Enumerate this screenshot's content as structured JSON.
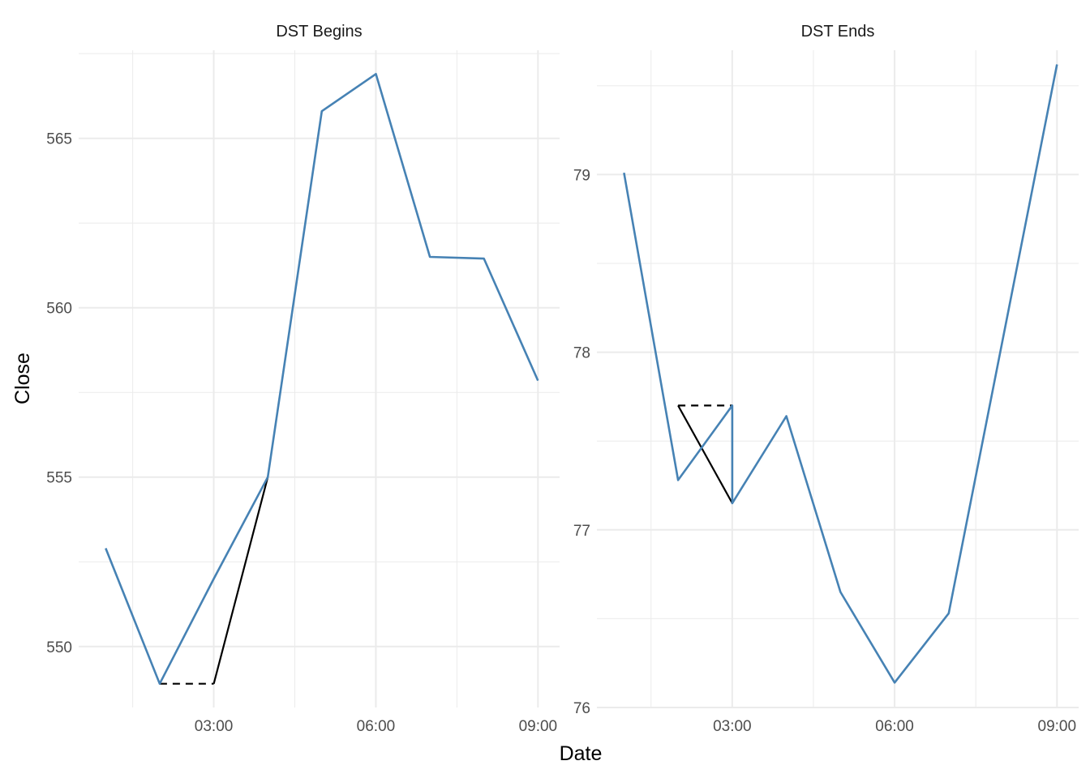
{
  "chart_data": {
    "type": "line",
    "xlabel": "Date",
    "ylabel": "Close",
    "grid": true,
    "colors": {
      "main": "#4682b4",
      "aux": "#000000"
    },
    "panels": [
      {
        "title": "DST Begins",
        "x_ticks": [
          "03:00",
          "06:00",
          "09:00"
        ],
        "x_tick_hours": [
          3,
          6,
          9
        ],
        "xlim": [
          0.5,
          9.4
        ],
        "y_ticks": [
          550,
          555,
          560,
          565
        ],
        "ylim": [
          548.2,
          567.6
        ],
        "series": [
          {
            "role": "main",
            "style": "solid",
            "points": [
              [
                1,
                552.9
              ],
              [
                2,
                548.9
              ],
              [
                3,
                552.0
              ],
              [
                4,
                555.0
              ],
              [
                5,
                565.8
              ],
              [
                6,
                566.9
              ],
              [
                7,
                561.5
              ],
              [
                8,
                561.45
              ],
              [
                9,
                557.85
              ]
            ]
          },
          {
            "role": "aux",
            "style": "solid",
            "points": [
              [
                3,
                548.9
              ],
              [
                4,
                555.0
              ]
            ]
          },
          {
            "role": "aux",
            "style": "dashed",
            "points": [
              [
                2,
                548.9
              ],
              [
                3,
                548.9
              ]
            ]
          }
        ]
      },
      {
        "title": "DST Ends",
        "x_ticks": [
          "03:00",
          "06:00",
          "09:00"
        ],
        "x_tick_hours": [
          3,
          6,
          9
        ],
        "xlim": [
          0.5,
          9.4
        ],
        "y_ticks": [
          76,
          77,
          78,
          79
        ],
        "ylim": [
          76.0,
          79.7
        ],
        "series": [
          {
            "role": "main",
            "style": "solid",
            "points": [
              [
                1,
                79.01
              ],
              [
                2,
                77.28
              ],
              [
                3,
                77.7
              ],
              [
                3,
                77.15
              ],
              [
                4,
                77.64
              ],
              [
                5,
                76.65
              ],
              [
                6,
                76.14
              ],
              [
                7,
                76.53
              ],
              [
                9,
                79.62
              ]
            ]
          },
          {
            "role": "aux",
            "style": "solid",
            "points": [
              [
                2,
                77.7
              ],
              [
                3,
                77.15
              ]
            ]
          },
          {
            "role": "aux",
            "style": "dashed",
            "points": [
              [
                2,
                77.7
              ],
              [
                3,
                77.7
              ]
            ]
          }
        ]
      }
    ]
  }
}
